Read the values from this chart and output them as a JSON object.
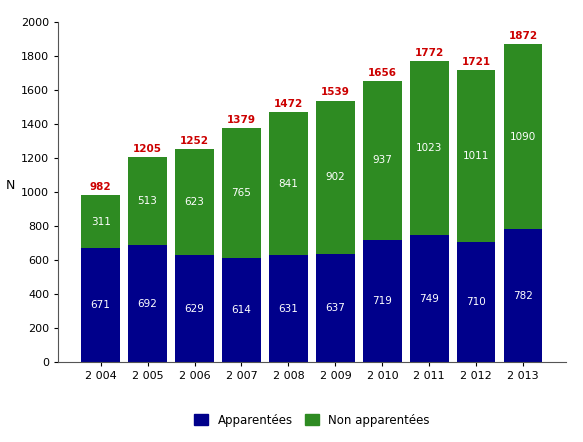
{
  "years": [
    "2 004",
    "2 005",
    "2 006",
    "2 007",
    "2 008",
    "2 009",
    "2 010",
    "2 011",
    "2 012",
    "2 013"
  ],
  "apparentees": [
    671,
    692,
    629,
    614,
    631,
    637,
    719,
    749,
    710,
    782
  ],
  "non_apparentees": [
    311,
    513,
    623,
    765,
    841,
    902,
    937,
    1023,
    1011,
    1090
  ],
  "totals": [
    982,
    1205,
    1252,
    1379,
    1472,
    1539,
    1656,
    1772,
    1721,
    1872
  ],
  "color_apparentees": "#00008B",
  "color_non_apparentees": "#2E8B22",
  "color_total_label": "#cc0000",
  "color_inner_label": "#ffffff",
  "ylabel": "N",
  "ylim": [
    0,
    2000
  ],
  "yticks": [
    0,
    200,
    400,
    600,
    800,
    1000,
    1200,
    1400,
    1600,
    1800,
    2000
  ],
  "legend_apparentees": "Apparentées",
  "legend_non_apparentees": "Non apparentées",
  "bar_width": 0.82,
  "figsize": [
    5.83,
    4.42
  ],
  "dpi": 100
}
